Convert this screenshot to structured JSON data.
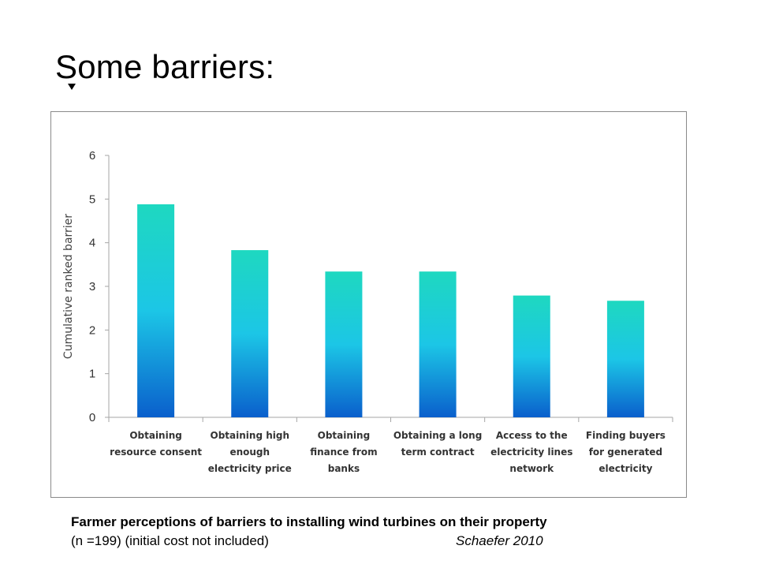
{
  "slide": {
    "title": "Some barriers:"
  },
  "caption": {
    "line1": "Farmer perceptions of barriers to installing wind turbines on their property",
    "line2": "(n =199) (initial cost not included)",
    "source": "Schaefer 2010"
  },
  "chart_data": {
    "type": "bar",
    "title": "",
    "xlabel": "",
    "ylabel": "Cumulative ranked barrier",
    "ylim": [
      0,
      6
    ],
    "yticks": [
      "0",
      "1",
      "2",
      "3",
      "4",
      "5",
      "6"
    ],
    "grid": false,
    "legend": "none",
    "categories": [
      [
        "Obtaining",
        "resource consent"
      ],
      [
        "Obtaining high",
        "enough",
        "electricity price"
      ],
      [
        "Obtaining",
        "finance from",
        "banks"
      ],
      [
        "Obtaining a long",
        "term contract"
      ],
      [
        "Access to the",
        "electricity lines",
        "network"
      ],
      [
        "Finding buyers",
        "for generated",
        "electricity"
      ]
    ],
    "values": [
      4.88,
      3.83,
      3.34,
      3.34,
      2.79,
      2.67
    ],
    "colors": {
      "bar_top": "#1ed8c0",
      "bar_mid": "#1cc6e6",
      "bar_bottom": "#0a5fcc",
      "axis": "#a6a6a6"
    }
  }
}
